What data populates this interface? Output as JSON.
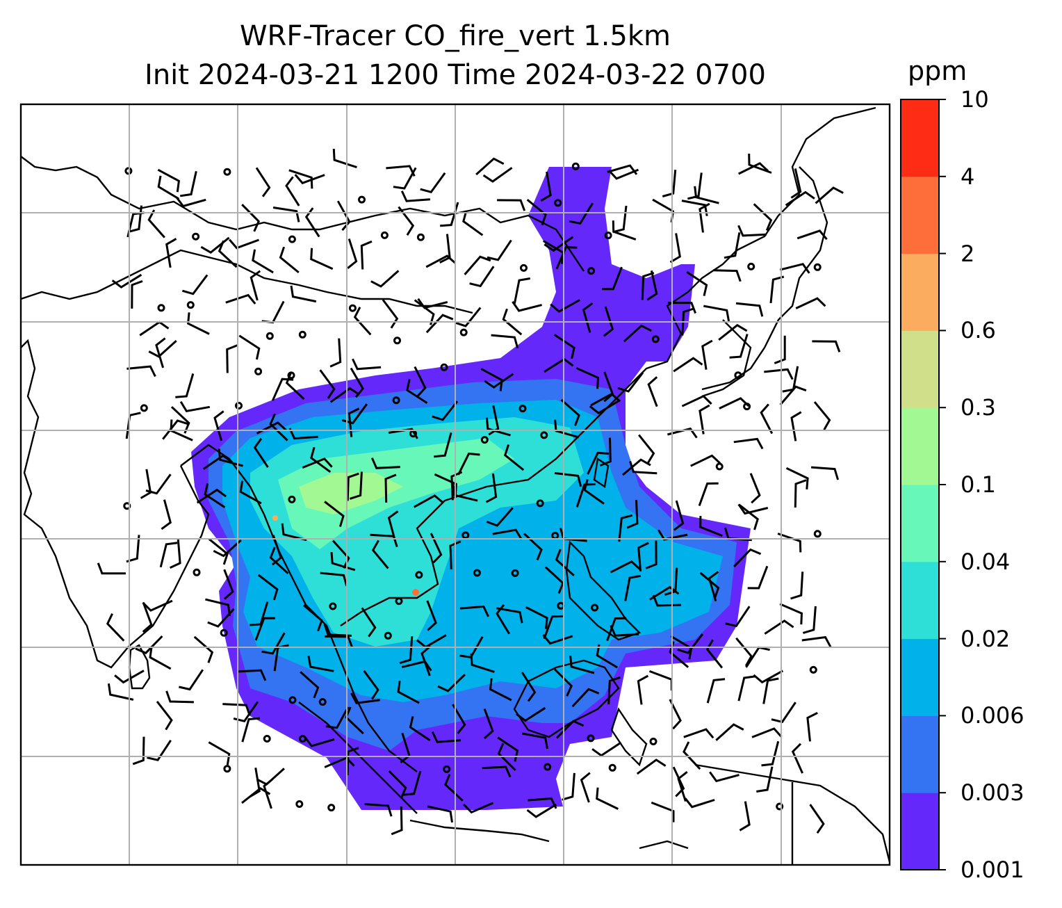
{
  "title": {
    "line1": "WRF-Tracer CO_fire_vert 1.5km",
    "line2": "Init 2024-03-21 1200 Time 2024-03-22 0700"
  },
  "colorbar": {
    "unit": "ppm",
    "ticks": [
      "0.001",
      "0.003",
      "0.006",
      "0.02",
      "0.04",
      "0.1",
      "0.3",
      "0.6",
      "2",
      "4",
      "10"
    ],
    "colors": [
      "#6528fb",
      "#3474f2",
      "#00b1ea",
      "#2edfd7",
      "#67f8b9",
      "#a2f993",
      "#d0e08a",
      "#fbac5e",
      "#fe6e3b",
      "#ff2c15"
    ]
  },
  "map": {
    "coastline_color": "#000000",
    "grid_color": "#b0b0b0",
    "plume_levels": {
      "outer": "#6528fb",
      "low": "#3474f2",
      "mid": "#00b1ea",
      "high": "#2edfd7",
      "peak": "#67f8b9"
    }
  }
}
